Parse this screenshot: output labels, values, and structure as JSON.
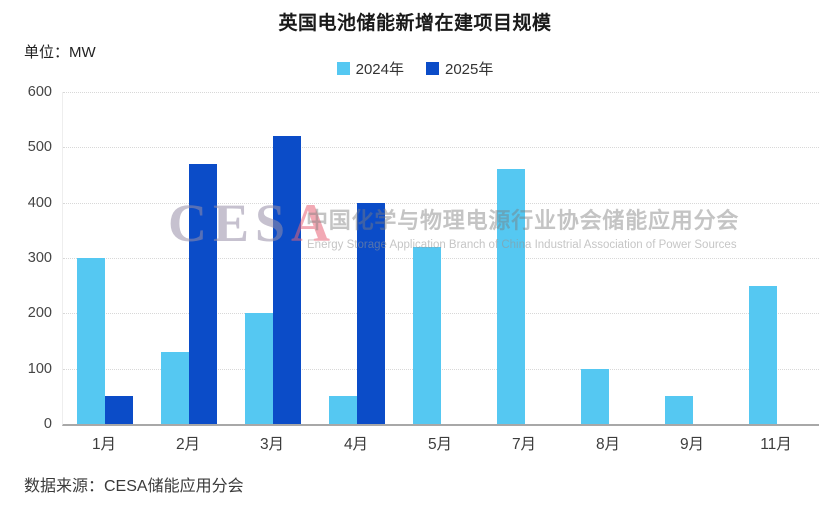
{
  "header": {
    "title": "英国电池储能新增在建项目规模",
    "unit_label": "单位：MW"
  },
  "legend": [
    {
      "label": "2024年",
      "color": "#55c8f2"
    },
    {
      "label": "2025年",
      "color": "#0b4cc8"
    }
  ],
  "chart_data": {
    "type": "bar",
    "title": "英国电池储能新增在建项目规模",
    "unit": "MW",
    "categories": [
      "1月",
      "2月",
      "3月",
      "4月",
      "5月",
      "7月",
      "8月",
      "9月",
      "11月"
    ],
    "series": [
      {
        "name": "2024年",
        "color": "#55c8f2",
        "values": [
          300,
          130,
          200,
          50,
          320,
          460,
          100,
          50,
          250
        ]
      },
      {
        "name": "2025年",
        "color": "#0b4cc8",
        "values": [
          50,
          470,
          520,
          400,
          null,
          null,
          null,
          null,
          null
        ]
      }
    ],
    "ylim": [
      0,
      600
    ],
    "ytick_step": 100,
    "grid": "dotted horizontal gridlines",
    "legend_position": "top center"
  },
  "watermark": {
    "logo_ces": "CES",
    "logo_a": "A",
    "cn": "中国化学与物理电源行业协会储能应用分会",
    "en": "Energy Storage Application Branch of China Industrial Association of Power Sources"
  },
  "footer": {
    "source": "数据来源：CESA储能应用分会"
  }
}
